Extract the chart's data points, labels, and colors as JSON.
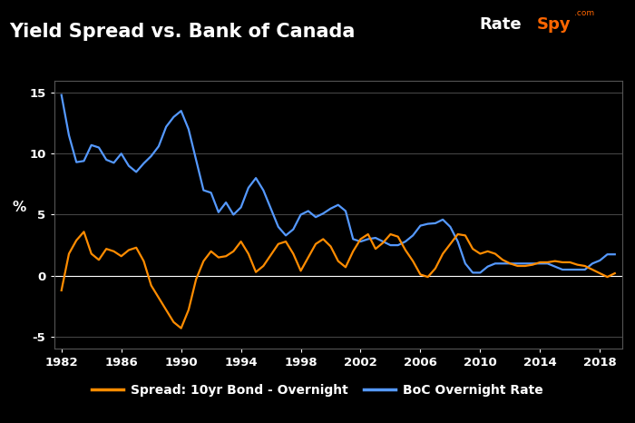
{
  "title": "Yield Spread vs. Bank of Canada",
  "ylabel": "%",
  "background_color": "#000000",
  "plot_bg_color": "#000000",
  "title_color": "#ffffff",
  "axis_color": "#ffffff",
  "grid_color": "#444444",
  "line_boc_color": "#5599ff",
  "line_spread_color": "#ff8c00",
  "xlim": [
    1981.5,
    2019.5
  ],
  "ylim": [
    -6,
    16
  ],
  "yticks": [
    -5,
    0,
    5,
    10,
    15
  ],
  "xticks": [
    1982,
    1986,
    1990,
    1994,
    1998,
    2002,
    2006,
    2010,
    2014,
    2018
  ],
  "boc_years": [
    1982,
    1982.5,
    1983,
    1983.5,
    1984,
    1984.5,
    1985,
    1985.5,
    1986,
    1986.5,
    1987,
    1987.5,
    1988,
    1988.5,
    1989,
    1989.5,
    1990,
    1990.5,
    1991,
    1991.5,
    1992,
    1992.5,
    1993,
    1993.5,
    1994,
    1994.5,
    1995,
    1995.5,
    1996,
    1996.5,
    1997,
    1997.5,
    1998,
    1998.5,
    1999,
    1999.5,
    2000,
    2000.5,
    2001,
    2001.5,
    2002,
    2002.5,
    2003,
    2003.5,
    2004,
    2004.5,
    2005,
    2005.5,
    2006,
    2006.5,
    2007,
    2007.5,
    2008,
    2008.5,
    2009,
    2009.5,
    2010,
    2010.5,
    2011,
    2011.5,
    2012,
    2012.5,
    2013,
    2013.5,
    2014,
    2014.5,
    2015,
    2015.5,
    2016,
    2016.5,
    2017,
    2017.5,
    2018,
    2018.5,
    2019
  ],
  "boc_values": [
    14.8,
    11.5,
    9.3,
    9.4,
    10.7,
    10.5,
    9.5,
    9.25,
    10.0,
    9.0,
    8.5,
    9.2,
    9.8,
    10.6,
    12.2,
    13.0,
    13.5,
    12.0,
    9.5,
    7.0,
    6.8,
    5.2,
    6.0,
    5.0,
    5.6,
    7.2,
    8.0,
    7.0,
    5.5,
    4.0,
    3.3,
    3.8,
    5.0,
    5.3,
    4.8,
    5.1,
    5.5,
    5.8,
    5.3,
    3.0,
    2.8,
    3.0,
    3.1,
    2.8,
    2.5,
    2.5,
    2.8,
    3.3,
    4.1,
    4.25,
    4.3,
    4.6,
    4.0,
    2.8,
    1.0,
    0.25,
    0.25,
    0.75,
    1.0,
    1.0,
    1.0,
    1.0,
    1.0,
    1.0,
    1.0,
    1.0,
    0.75,
    0.5,
    0.5,
    0.5,
    0.5,
    1.0,
    1.25,
    1.75,
    1.75
  ],
  "spread_years": [
    1982,
    1982.5,
    1983,
    1983.5,
    1984,
    1984.5,
    1985,
    1985.5,
    1986,
    1986.5,
    1987,
    1987.5,
    1988,
    1988.5,
    1989,
    1989.5,
    1990,
    1990.5,
    1991,
    1991.5,
    1992,
    1992.5,
    1993,
    1993.5,
    1994,
    1994.5,
    1995,
    1995.5,
    1996,
    1996.5,
    1997,
    1997.5,
    1998,
    1998.5,
    1999,
    1999.5,
    2000,
    2000.5,
    2001,
    2001.5,
    2002,
    2002.5,
    2003,
    2003.5,
    2004,
    2004.5,
    2005,
    2005.5,
    2006,
    2006.5,
    2007,
    2007.5,
    2008,
    2008.5,
    2009,
    2009.5,
    2010,
    2010.5,
    2011,
    2011.5,
    2012,
    2012.5,
    2013,
    2013.5,
    2014,
    2014.5,
    2015,
    2015.5,
    2016,
    2016.5,
    2017,
    2017.5,
    2018,
    2018.5,
    2019
  ],
  "spread_values": [
    -1.2,
    1.8,
    2.9,
    3.6,
    1.8,
    1.3,
    2.2,
    2.0,
    1.6,
    2.1,
    2.3,
    1.2,
    -0.8,
    -1.8,
    -2.8,
    -3.8,
    -4.3,
    -2.8,
    -0.3,
    1.2,
    2.0,
    1.5,
    1.6,
    2.0,
    2.8,
    1.8,
    0.3,
    0.8,
    1.7,
    2.6,
    2.8,
    1.8,
    0.4,
    1.5,
    2.6,
    3.0,
    2.4,
    1.2,
    0.7,
    2.0,
    3.0,
    3.4,
    2.2,
    2.7,
    3.4,
    3.2,
    2.1,
    1.2,
    0.1,
    -0.1,
    0.6,
    1.8,
    2.6,
    3.4,
    3.3,
    2.2,
    1.8,
    2.0,
    1.8,
    1.3,
    1.0,
    0.8,
    0.8,
    0.9,
    1.1,
    1.1,
    1.2,
    1.1,
    1.1,
    0.9,
    0.8,
    0.5,
    0.2,
    -0.1,
    0.2
  ]
}
